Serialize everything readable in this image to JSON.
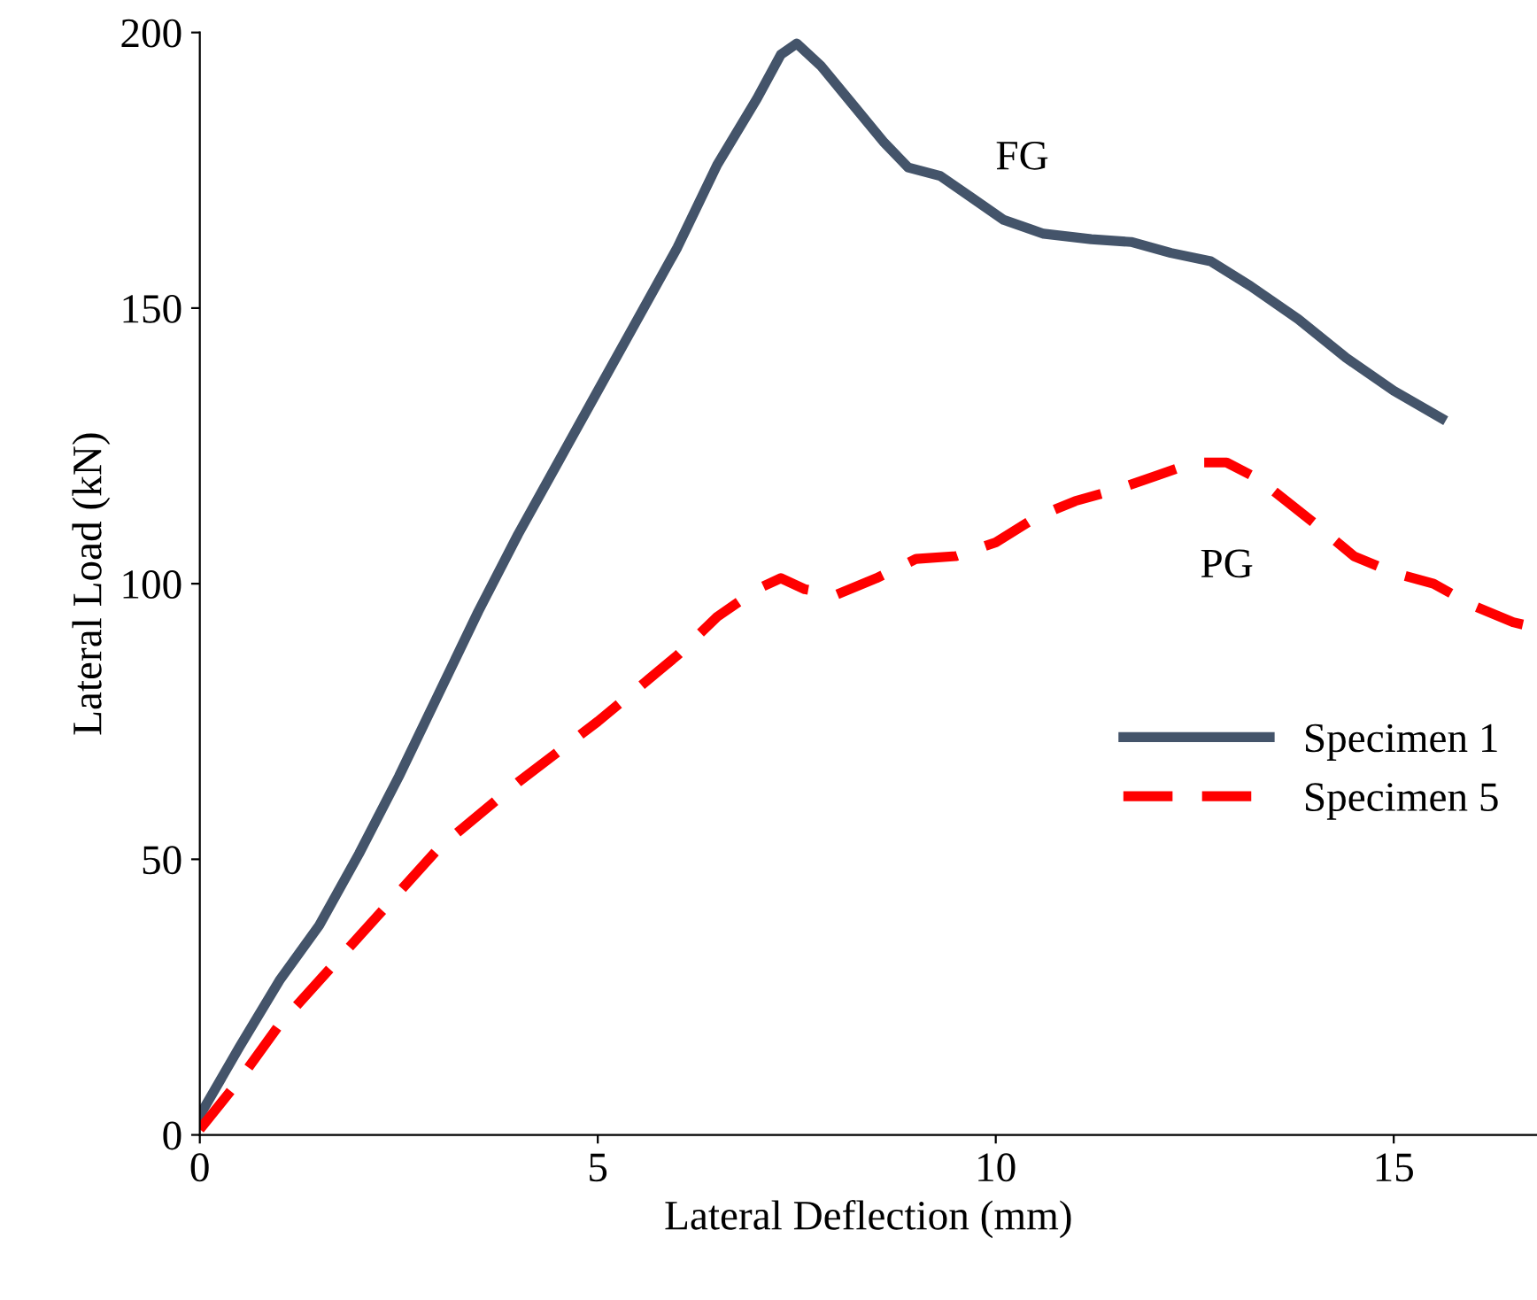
{
  "chart_data": {
    "type": "line",
    "xlabel": "Lateral Deflection (mm)",
    "ylabel": "Lateral Load (kN)",
    "xlim": [
      0,
      16.8
    ],
    "xticks": [
      0,
      5,
      10,
      15
    ],
    "ylim": [
      0,
      200
    ],
    "yticks": [
      0,
      50,
      100,
      150,
      200
    ],
    "grid": false,
    "legend": "right",
    "marker": "none",
    "series": [
      {
        "name": "Specimen 1",
        "color": "#44546a",
        "line_style": "solid",
        "x": [
          0,
          0.5,
          1,
          1.5,
          2,
          2.5,
          3,
          3.5,
          4,
          4.5,
          5,
          5.5,
          6,
          6.5,
          7,
          7.3,
          7.5,
          7.8,
          8.2,
          8.6,
          8.9,
          9.3,
          9.7,
          10.1,
          10.6,
          11.2,
          11.7,
          12.2,
          12.7,
          13.2,
          13.8,
          14.4,
          15,
          15.6
        ],
        "values": [
          3.5,
          16,
          28,
          38,
          51,
          65,
          80,
          95,
          109,
          122,
          135,
          148,
          161,
          176,
          188,
          196,
          198,
          194,
          187,
          180,
          175.5,
          174,
          170,
          166,
          163.5,
          162.5,
          162,
          160,
          158.5,
          154,
          148,
          141,
          135,
          130
        ]
      },
      {
        "name": "Specimen 5",
        "color": "#ff0000",
        "line_style": "dashed",
        "x": [
          0,
          0.5,
          1,
          2,
          3,
          4,
          5,
          6,
          6.5,
          7,
          7.3,
          7.6,
          8,
          8.5,
          9,
          9.5,
          10,
          10.5,
          11,
          11.5,
          12,
          12.5,
          12.9,
          13.3,
          14,
          14.5,
          15,
          15.5,
          16,
          16.5,
          16.8
        ],
        "values": [
          1,
          10,
          20,
          36,
          52,
          64,
          75,
          87,
          94,
          99,
          101,
          99,
          98,
          101,
          104.5,
          105,
          107.5,
          112,
          115,
          117,
          119.5,
          122,
          122,
          119,
          111,
          105,
          102,
          100,
          96,
          93,
          92
        ]
      }
    ],
    "annotations": [
      "FG",
      "PG"
    ]
  }
}
